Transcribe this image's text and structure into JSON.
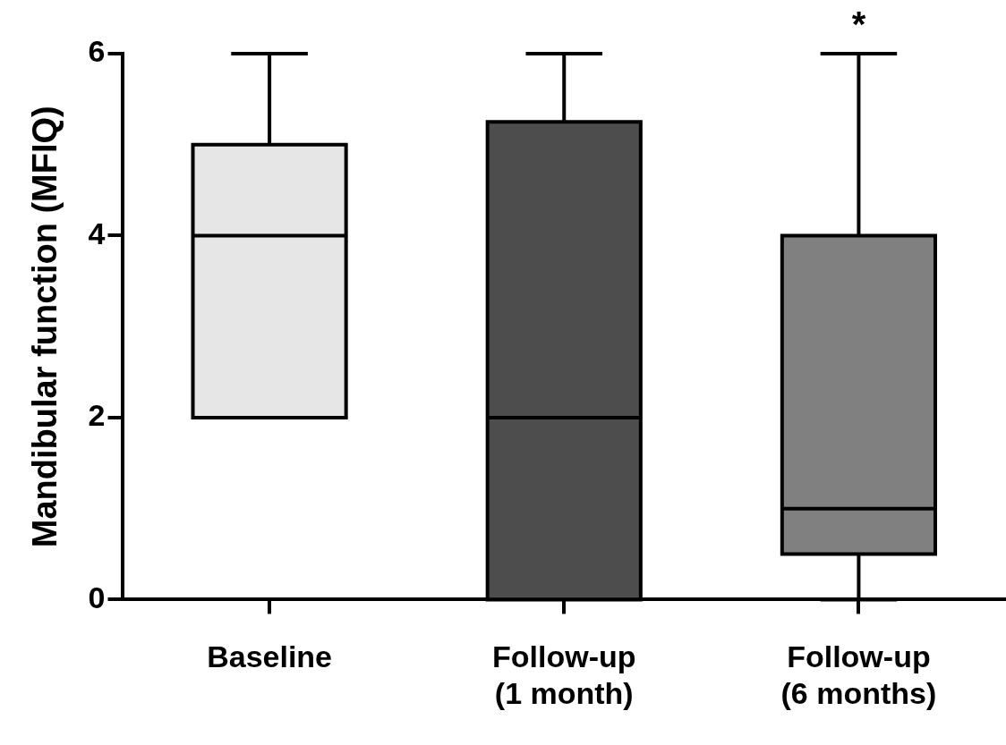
{
  "chart_data": {
    "type": "box",
    "ylabel": "Mandibular function (MFIQ)",
    "categories": [
      "Baseline",
      "Follow-up\n(1 month)",
      "Follow-up\n(6 months)"
    ],
    "boxes": [
      {
        "low": 2,
        "q1": 2,
        "median": 4,
        "q3": 5,
        "high": 6
      },
      {
        "low": 0,
        "q1": 0,
        "median": 2,
        "q3": 5.25,
        "high": 6
      },
      {
        "low": 0,
        "q1": 0.5,
        "median": 1,
        "q3": 4,
        "high": 6
      }
    ],
    "colors": [
      "#e6e6e6",
      "#4d4d4d",
      "#808080"
    ],
    "ylim": [
      0,
      6
    ],
    "yticks": [
      0,
      2,
      4,
      6
    ],
    "grid": false,
    "legend": false,
    "annotations": [
      {
        "text": "*",
        "x": "Follow-up\n(6 months)",
        "y": 6
      }
    ]
  }
}
